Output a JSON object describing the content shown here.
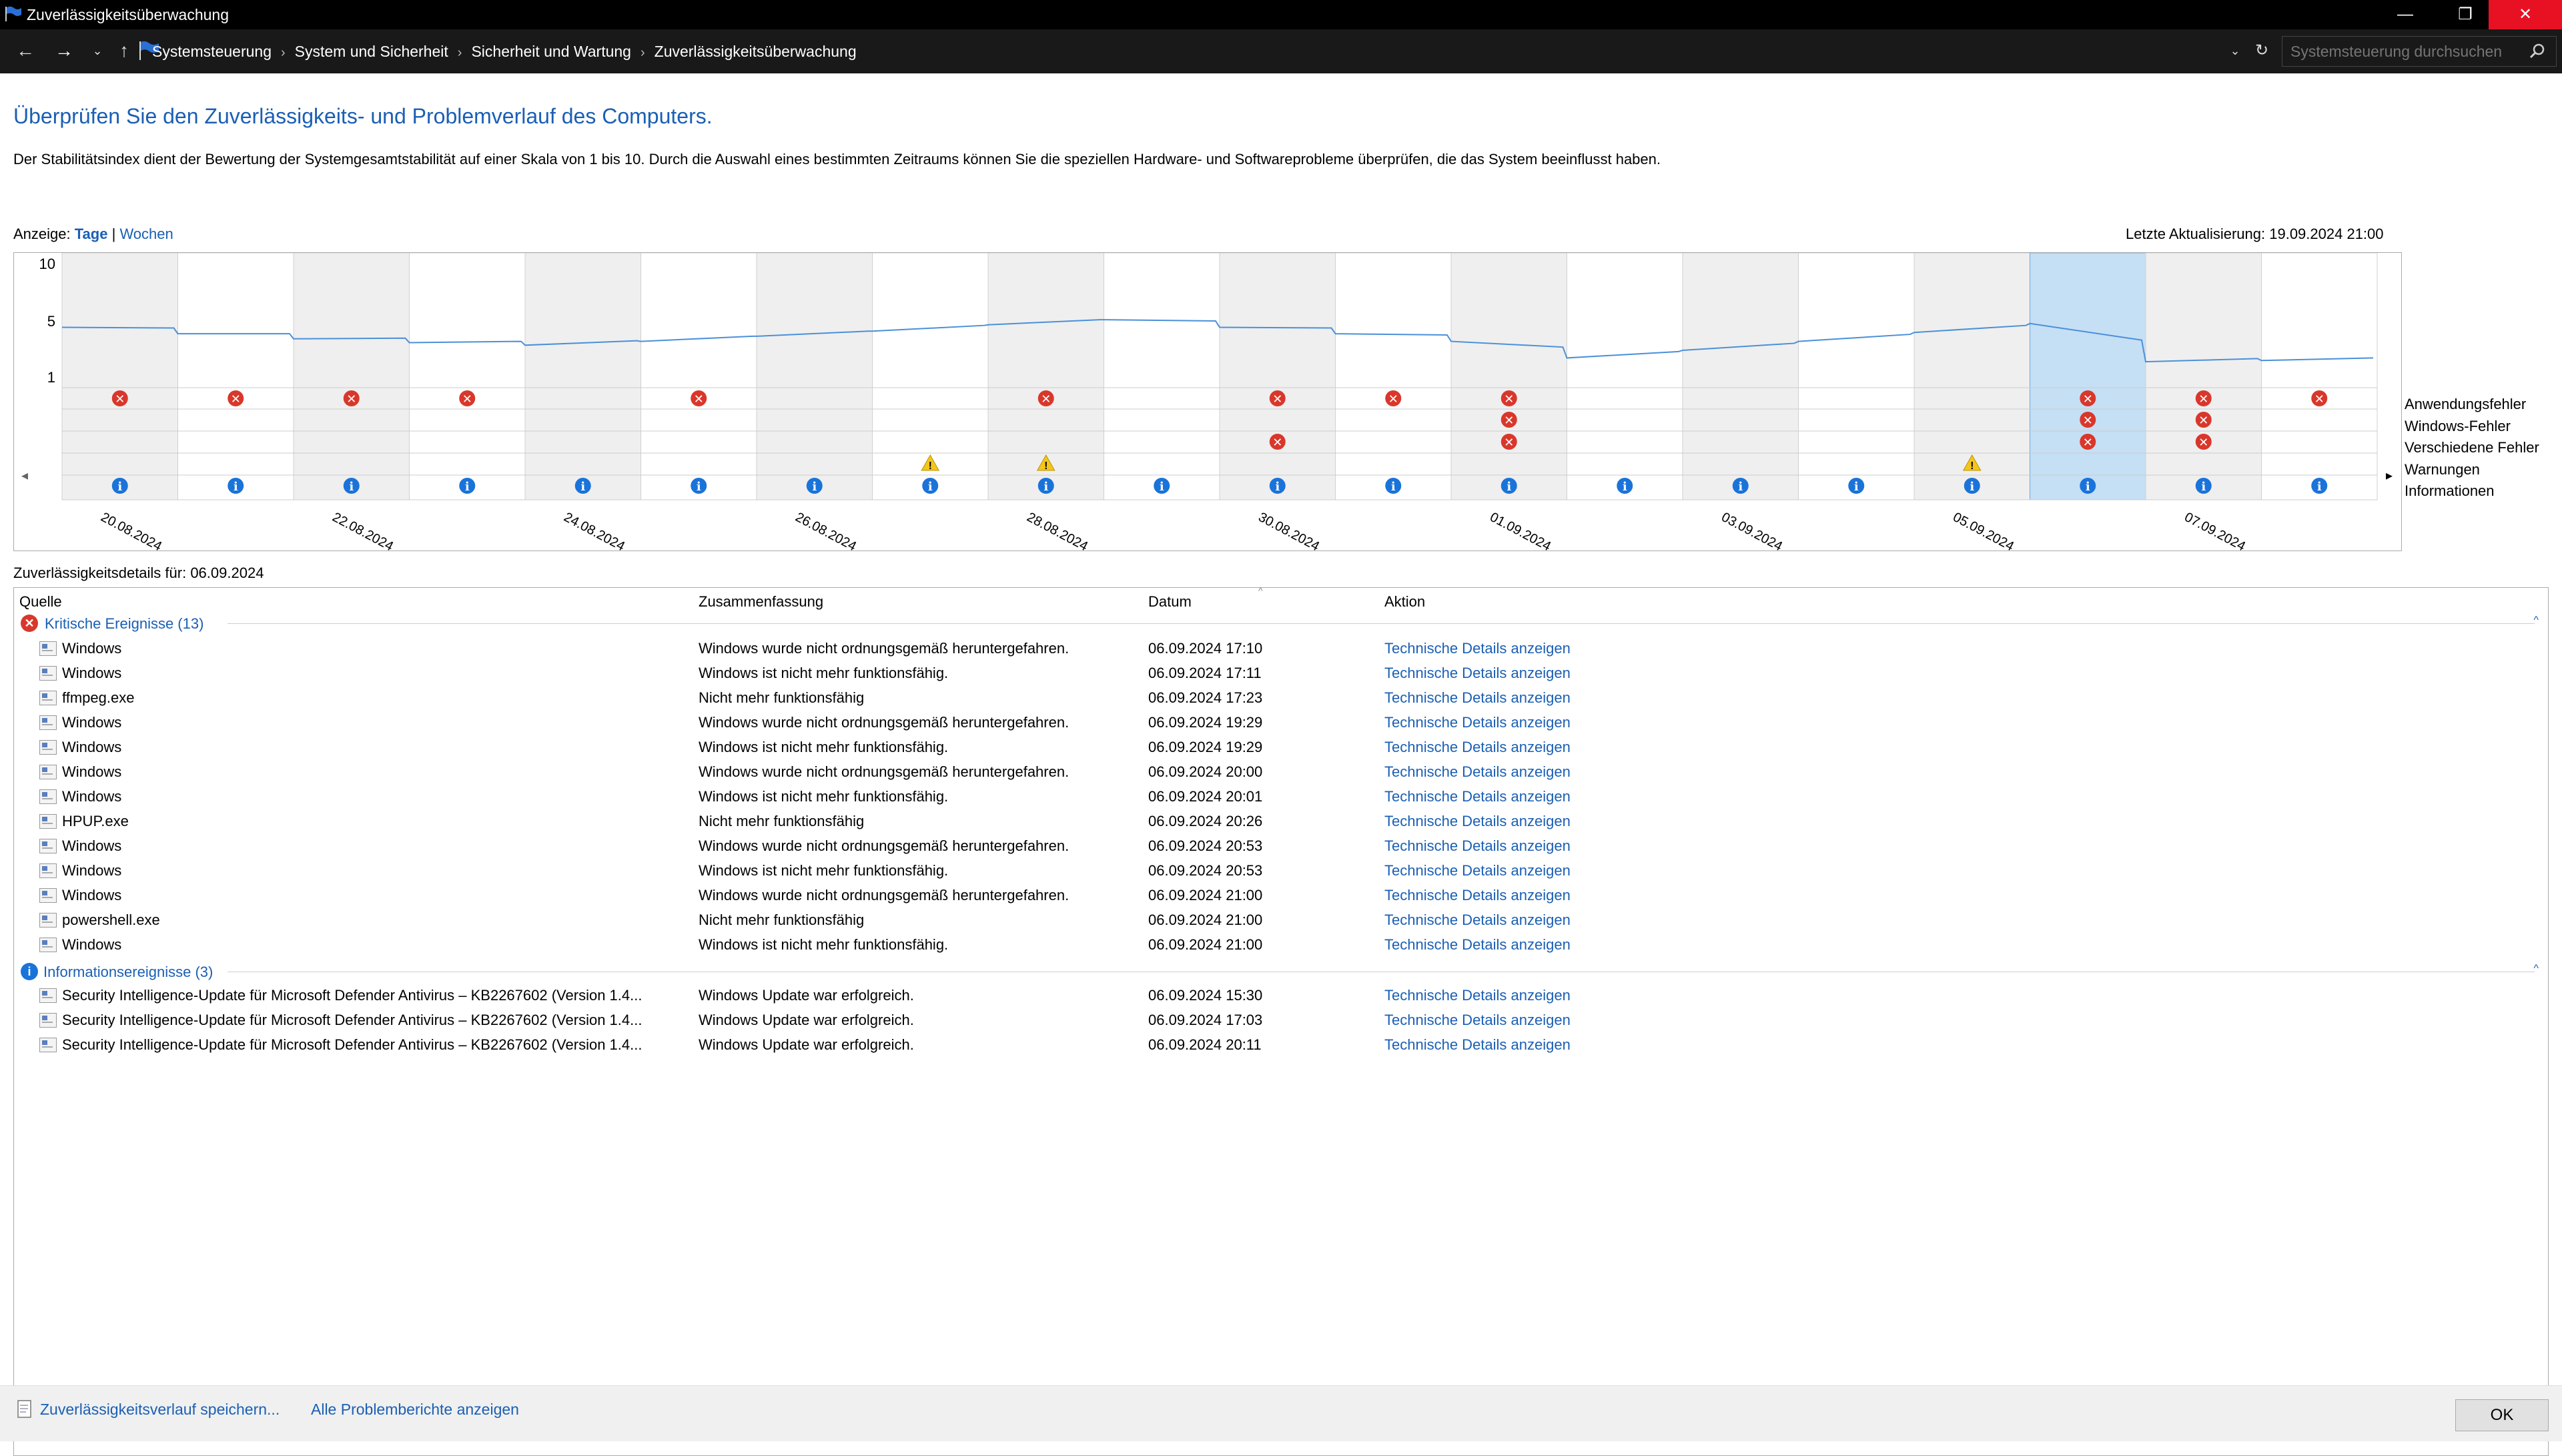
{
  "window": {
    "title": "Zuverlässigkeitsüberwachung",
    "minimize": "—",
    "restore": "❐",
    "close": "✕"
  },
  "address": {
    "breadcrumbs": [
      "Systemsteuerung",
      "System und Sicherheit",
      "Sicherheit und Wartung",
      "Zuverlässigkeitsüberwachung"
    ],
    "search_placeholder": "Systemsteuerung durchsuchen"
  },
  "headline": "Überprüfen Sie den Zuverlässigkeits- und Problemverlauf des Computers.",
  "description": "Der Stabilitätsindex dient der Bewertung der Systemgesamtstabilität auf einer Skala von 1 bis 10. Durch die Auswahl eines bestimmten Zeitraums können Sie die speziellen Hardware- und Softwareprobleme überprüfen, die das System beeinflusst haben.",
  "view": {
    "label": "Anzeige:",
    "days": "Tage",
    "separator": "|",
    "weeks": "Wochen"
  },
  "last_update": "Letzte Aktualisierung: 19.09.2024 21:00",
  "chart_data": {
    "type": "line",
    "title": "",
    "ylim": [
      1,
      10
    ],
    "y_ticks": [
      "10",
      "5",
      "1"
    ],
    "date_labels": [
      "20.08.2024",
      "22.08.2024",
      "24.08.2024",
      "26.08.2024",
      "28.08.2024",
      "30.08.2024",
      "01.09.2024",
      "03.09.2024",
      "05.09.2024",
      "07.09.2024"
    ],
    "days": [
      "20.08",
      "21.08",
      "22.08",
      "23.08",
      "24.08",
      "25.08",
      "26.08",
      "27.08",
      "28.08",
      "29.08",
      "30.08",
      "31.08",
      "01.09",
      "02.09",
      "03.09",
      "04.09",
      "05.09",
      "06.09",
      "07.09",
      "08.09"
    ],
    "stability_index": [
      5.0,
      4.5,
      4.1,
      3.8,
      3.6,
      3.9,
      4.3,
      4.7,
      5.2,
      5.6,
      5.0,
      4.5,
      3.9,
      2.6,
      3.2,
      3.9,
      4.6,
      5.3,
      2.3,
      2.4
    ],
    "selected_index": 17,
    "event_rows": [
      "Anwendungsfehler",
      "Windows-Fehler",
      "Verschiedene Fehler",
      "Warnungen",
      "Informationen"
    ],
    "events": {
      "app_errors": [
        0,
        1,
        2,
        3,
        5,
        8,
        10,
        11,
        12,
        17,
        18,
        19
      ],
      "windows_errors": [
        12,
        17,
        18
      ],
      "misc_errors": [
        10,
        12,
        17,
        18
      ],
      "warnings": [
        7,
        8,
        16
      ],
      "information": [
        0,
        1,
        2,
        3,
        4,
        5,
        6,
        7,
        8,
        9,
        10,
        11,
        12,
        13,
        14,
        15,
        16,
        17,
        18,
        19
      ]
    }
  },
  "details": {
    "header": "Zuverlässigkeitsdetails für: 06.09.2024",
    "columns": {
      "source": "Quelle",
      "summary": "Zusammenfassung",
      "date": "Datum",
      "action": "Aktion"
    },
    "critical_group": "Kritische Ereignisse (13)",
    "critical": [
      {
        "source": "Windows",
        "summary": "Windows wurde nicht ordnungsgemäß heruntergefahren.",
        "date": "06.09.2024 17:10",
        "action": "Technische Details anzeigen"
      },
      {
        "source": "Windows",
        "summary": "Windows ist nicht mehr funktionsfähig.",
        "date": "06.09.2024 17:11",
        "action": "Technische Details anzeigen"
      },
      {
        "source": "ffmpeg.exe",
        "summary": "Nicht mehr funktionsfähig",
        "date": "06.09.2024 17:23",
        "action": "Technische Details anzeigen"
      },
      {
        "source": "Windows",
        "summary": "Windows wurde nicht ordnungsgemäß heruntergefahren.",
        "date": "06.09.2024 19:29",
        "action": "Technische Details anzeigen"
      },
      {
        "source": "Windows",
        "summary": "Windows ist nicht mehr funktionsfähig.",
        "date": "06.09.2024 19:29",
        "action": "Technische Details anzeigen"
      },
      {
        "source": "Windows",
        "summary": "Windows wurde nicht ordnungsgemäß heruntergefahren.",
        "date": "06.09.2024 20:00",
        "action": "Technische Details anzeigen"
      },
      {
        "source": "Windows",
        "summary": "Windows ist nicht mehr funktionsfähig.",
        "date": "06.09.2024 20:01",
        "action": "Technische Details anzeigen"
      },
      {
        "source": "HPUP.exe",
        "summary": "Nicht mehr funktionsfähig",
        "date": "06.09.2024 20:26",
        "action": "Technische Details anzeigen"
      },
      {
        "source": "Windows",
        "summary": "Windows wurde nicht ordnungsgemäß heruntergefahren.",
        "date": "06.09.2024 20:53",
        "action": "Technische Details anzeigen"
      },
      {
        "source": "Windows",
        "summary": "Windows ist nicht mehr funktionsfähig.",
        "date": "06.09.2024 20:53",
        "action": "Technische Details anzeigen"
      },
      {
        "source": "Windows",
        "summary": "Windows wurde nicht ordnungsgemäß heruntergefahren.",
        "date": "06.09.2024 21:00",
        "action": "Technische Details anzeigen"
      },
      {
        "source": "powershell.exe",
        "summary": "Nicht mehr funktionsfähig",
        "date": "06.09.2024 21:00",
        "action": "Technische Details anzeigen"
      },
      {
        "source": "Windows",
        "summary": "Windows ist nicht mehr funktionsfähig.",
        "date": "06.09.2024 21:00",
        "action": "Technische Details anzeigen"
      }
    ],
    "info_group": "Informationsereignisse (3)",
    "info": [
      {
        "source": "Security Intelligence-Update für Microsoft Defender Antivirus – KB2267602 (Version 1.4...",
        "summary": "Windows Update war erfolgreich.",
        "date": "06.09.2024 15:30",
        "action": "Technische Details anzeigen"
      },
      {
        "source": "Security Intelligence-Update für Microsoft Defender Antivirus – KB2267602 (Version 1.4...",
        "summary": "Windows Update war erfolgreich.",
        "date": "06.09.2024 17:03",
        "action": "Technische Details anzeigen"
      },
      {
        "source": "Security Intelligence-Update für Microsoft Defender Antivirus – KB2267602 (Version 1.4...",
        "summary": "Windows Update war erfolgreich.",
        "date": "06.09.2024 20:11",
        "action": "Technische Details anzeigen"
      }
    ]
  },
  "footer": {
    "save_link": "Zuverlässigkeitsverlauf speichern...",
    "reports_link": "Alle Problemberichte anzeigen",
    "ok": "OK"
  }
}
